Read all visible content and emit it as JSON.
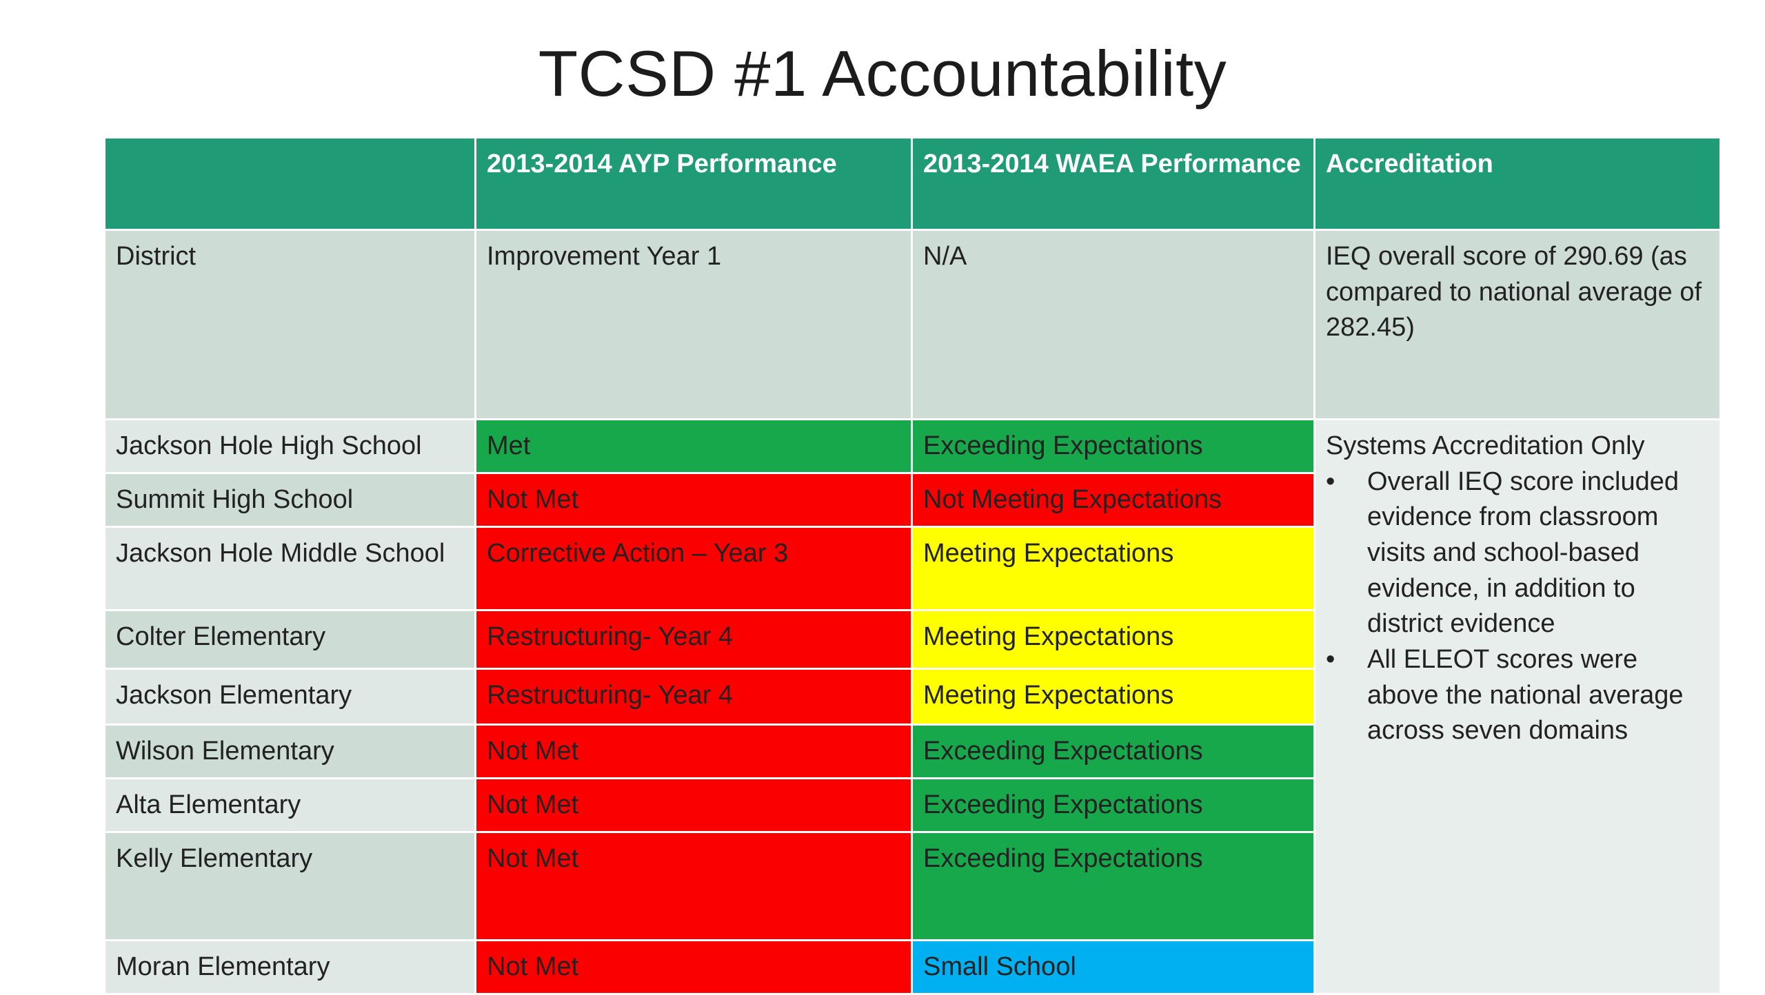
{
  "title": "TCSD #1 Accountability",
  "headers": [
    "",
    "2013-2014 AYP Performance",
    "2013-2014 WAEA Performance",
    "Accreditation"
  ],
  "district": {
    "name": "District",
    "ayp": "Improvement Year 1",
    "waea": "N/A",
    "accreditation": "IEQ overall score of 290.69 (as compared to national average of 282.45)"
  },
  "schools": [
    {
      "name": "Jackson Hole High School",
      "ayp": "Met",
      "ayp_color": "#16a84a",
      "waea": "Exceeding Expectations",
      "waea_color": "#16a84a"
    },
    {
      "name": "Summit High School",
      "ayp": "Not Met",
      "ayp_color": "#fb0000",
      "waea": "Not Meeting Expectations",
      "waea_color": "#fb0000"
    },
    {
      "name": "Jackson Hole Middle School",
      "ayp": "Corrective Action – Year 3",
      "ayp_color": "#fb0000",
      "waea": "Meeting Expectations",
      "waea_color": "#ffff00"
    },
    {
      "name": "Colter Elementary",
      "ayp": "Restructuring- Year 4",
      "ayp_color": "#fb0000",
      "waea": "Meeting Expectations",
      "waea_color": "#ffff00"
    },
    {
      "name": "Jackson Elementary",
      "ayp": "Restructuring- Year 4",
      "ayp_color": "#fb0000",
      "waea": "Meeting Expectations",
      "waea_color": "#ffff00"
    },
    {
      "name": "Wilson Elementary",
      "ayp": "Not Met",
      "ayp_color": "#fb0000",
      "waea": "Exceeding Expectations",
      "waea_color": "#16a84a"
    },
    {
      "name": "Alta Elementary",
      "ayp": "Not Met",
      "ayp_color": "#fb0000",
      "waea": "Exceeding Expectations",
      "waea_color": "#16a84a"
    },
    {
      "name": "Kelly Elementary",
      "ayp": "Not Met",
      "ayp_color": "#fb0000",
      "waea": "Exceeding Expectations",
      "waea_color": "#16a84a"
    },
    {
      "name": "Moran Elementary",
      "ayp": "Not Met",
      "ayp_color": "#fb0000",
      "waea": "Small School",
      "waea_color": "#00b0f0"
    }
  ],
  "accreditation_schools": {
    "heading": "Systems Accreditation Only",
    "bullets": [
      "Overall IEQ score included evidence from classroom visits and school-based evidence, in addition to district evidence",
      "All ELEOT scores were above the national average across seven domains"
    ]
  }
}
